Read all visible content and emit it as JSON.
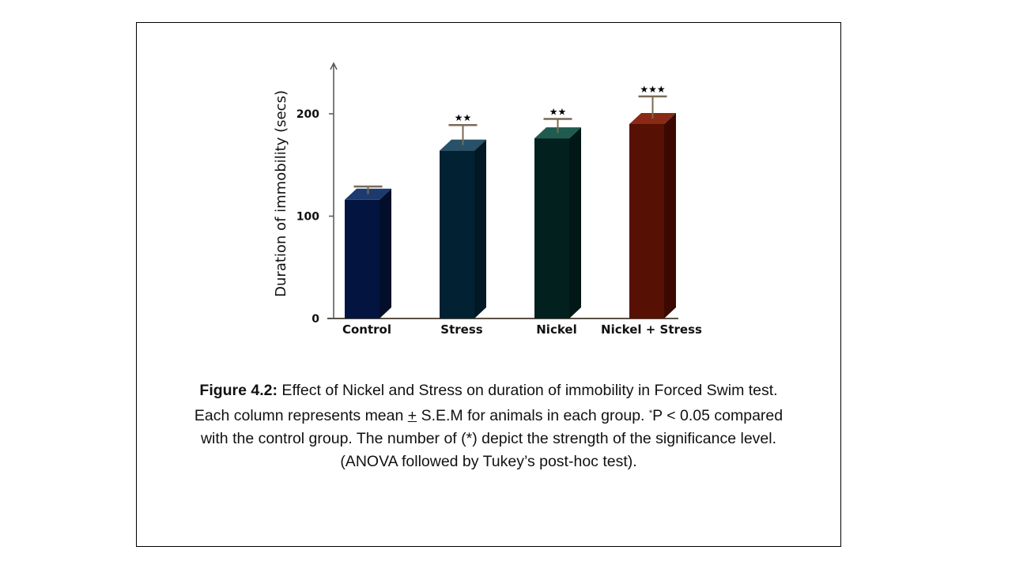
{
  "chart_data": {
    "type": "bar",
    "style": "3d-column",
    "title": "",
    "xlabel": "",
    "ylabel": "Duration of immobility (secs)",
    "ylim": [
      0,
      250
    ],
    "yticks": [
      0,
      100,
      200
    ],
    "ytick_labels": [
      "0",
      "100",
      "200"
    ],
    "grid": false,
    "categories": [
      "Control",
      "Stress",
      "Nickel",
      "Nickel + Stress"
    ],
    "values": [
      116,
      164,
      176,
      190
    ],
    "error_upper": [
      13,
      25,
      19,
      27
    ],
    "significance": [
      "",
      "★★",
      "★★",
      "★★★"
    ],
    "colors": {
      "front": [
        "#02143f",
        "#022234",
        "#02201e",
        "#561004"
      ],
      "top": [
        "#1d3a6e",
        "#275269",
        "#205b50",
        "#8a2a16"
      ],
      "side": [
        "#020e2a",
        "#011825",
        "#011816",
        "#3c0902"
      ],
      "error_bar": "#7a6a55",
      "axis": "#5a5045"
    }
  },
  "caption": {
    "figure_label": "Figure 4.2:",
    "line1": " Effect of Nickel and Stress on duration of immobility in Forced Swim test.",
    "line2_a": "Each column represents mean ",
    "line2_pm": "+",
    "line2_b": " S.E.M for animals in each group. ",
    "line2_sup": "*",
    "line2_c": "P < 0.05 compared",
    "line3": "with the control group. The number of (*) depict the strength of the significance level.",
    "line4": "(ANOVA followed by Tukey’s post-hoc test)."
  }
}
